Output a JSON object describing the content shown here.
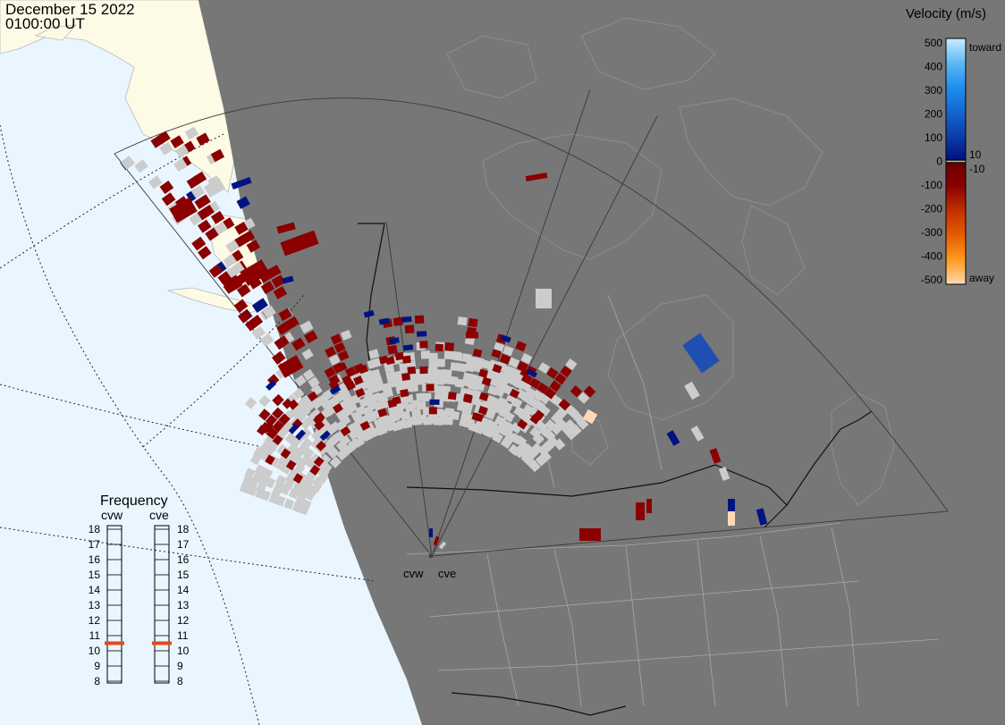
{
  "header": {
    "date": "December 15 2022",
    "time": "0100:00 UT"
  },
  "colors": {
    "ocean": "#e9f6ff",
    "land_day": "#fdfbe6",
    "night": "#777777",
    "ground_scatter": "#cccccc",
    "away_dark": "#8b0000",
    "toward_dark": "#00137f",
    "away_light": "#ffd9b4",
    "toward_light": "#c6ecff"
  },
  "legend": {
    "title": "Velocity (m/s)",
    "labels": [
      "500",
      "400",
      "300",
      "200",
      "100",
      "0",
      "-100",
      "-200",
      "-300",
      "-400",
      "-500"
    ],
    "toward_label": "toward",
    "away_label": "away",
    "pos_threshold": "10",
    "neg_threshold": "-10"
  },
  "frequency": {
    "title": "Frequency",
    "radars": [
      {
        "name": "cvw",
        "selected_mhz": 10.5
      },
      {
        "name": "cve",
        "selected_mhz": 10.5
      }
    ],
    "ticks": [
      "18",
      "17",
      "16",
      "15",
      "14",
      "13",
      "12",
      "11",
      "10",
      "9",
      "8"
    ]
  },
  "radar_sites": [
    {
      "label": "cvw"
    },
    {
      "label": "cve"
    }
  ]
}
